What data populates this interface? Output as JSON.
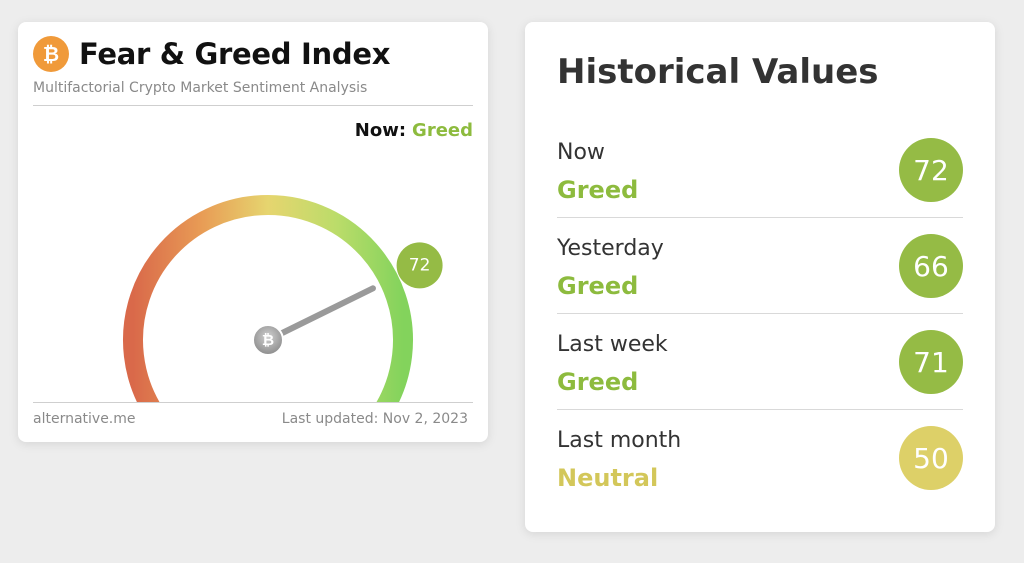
{
  "gauge_card": {
    "logo_glyph": "₿",
    "title": "Fear & Greed Index",
    "subtitle": "Multifactorial Crypto Market Sentiment Analysis",
    "now_label": "Now:",
    "now_value": "Greed",
    "gauge_value": 72,
    "gauge_value_text": "72",
    "needle_hub_glyph": "₿",
    "footer_source": "alternative.me",
    "footer_updated": "Last updated: Nov 2, 2023"
  },
  "historical": {
    "title": "Historical Values",
    "rows": [
      {
        "period": "Now",
        "label": "Greed",
        "value": "72",
        "label_color": "#8dbb3e",
        "badge_color": "#95bb45"
      },
      {
        "period": "Yesterday",
        "label": "Greed",
        "value": "66",
        "label_color": "#8dbb3e",
        "badge_color": "#95bb45"
      },
      {
        "period": "Last week",
        "label": "Greed",
        "value": "71",
        "label_color": "#8dbb3e",
        "badge_color": "#95bb45"
      },
      {
        "period": "Last month",
        "label": "Neutral",
        "value": "50",
        "label_color": "#d3c75a",
        "badge_color": "#ddd068"
      }
    ]
  },
  "colors": {
    "greed": "#8dbb3e",
    "neutral": "#d3c75a",
    "fear": "#d9694a",
    "bitcoin": "#f09a3a"
  }
}
